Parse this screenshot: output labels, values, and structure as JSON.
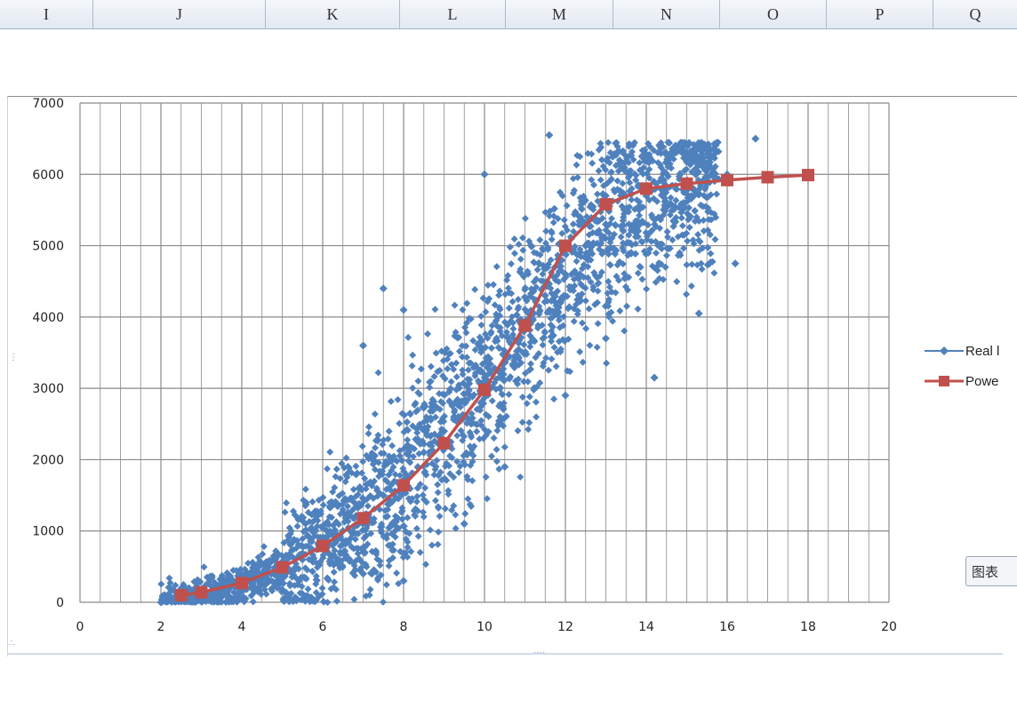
{
  "column_headers": [
    "I",
    "J",
    "K",
    "L",
    "M",
    "N",
    "O",
    "P",
    "Q"
  ],
  "chart_popup_label": "图表",
  "colors": {
    "scatter": "#4f81bd",
    "line": "#c0504d",
    "grid": "#8a8a8a",
    "header_bg": "#e3e9f1"
  },
  "chart_data": {
    "type": "scatter",
    "title": "",
    "xlabel": "",
    "ylabel": "",
    "xlim": [
      0,
      20
    ],
    "ylim": [
      0,
      7000
    ],
    "x_ticks": [
      "0",
      "2",
      "4",
      "6",
      "8",
      "10",
      "12",
      "14",
      "16",
      "18",
      "20"
    ],
    "y_ticks": [
      "0",
      "1000",
      "2000",
      "3000",
      "4000",
      "5000",
      "6000",
      "7000"
    ],
    "grid": true,
    "legend_position": "right",
    "series": [
      {
        "name": "Real l",
        "kind": "scatter",
        "marker": "diamond",
        "approx_points": 6000,
        "points": [
          [
            2.0,
            0
          ],
          [
            2.5,
            20
          ],
          [
            3.0,
            60
          ],
          [
            3.5,
            150
          ],
          [
            4.0,
            250
          ],
          [
            4.5,
            380
          ],
          [
            5.0,
            450
          ],
          [
            5.5,
            600
          ],
          [
            6.0,
            800
          ],
          [
            6.5,
            1000
          ],
          [
            7.0,
            1200
          ],
          [
            7.5,
            1500
          ],
          [
            8.0,
            1700
          ],
          [
            8.5,
            2100
          ],
          [
            9.0,
            2400
          ],
          [
            9.5,
            2800
          ],
          [
            10.0,
            3100
          ],
          [
            10.5,
            3500
          ],
          [
            11.0,
            3900
          ],
          [
            11.5,
            4300
          ],
          [
            12.0,
            4600
          ],
          [
            12.5,
            5000
          ],
          [
            13.0,
            5300
          ],
          [
            13.5,
            5500
          ],
          [
            14.0,
            5700
          ],
          [
            14.5,
            5800
          ],
          [
            15.0,
            5900
          ],
          [
            15.5,
            5950
          ],
          [
            16.0,
            6000
          ],
          [
            16.7,
            6500
          ],
          [
            11.6,
            6550
          ],
          [
            10.0,
            6000
          ],
          [
            7.5,
            4400
          ],
          [
            7.0,
            3600
          ],
          [
            8.0,
            4100
          ],
          [
            16.2,
            4750
          ],
          [
            15.3,
            4050
          ],
          [
            14.2,
            3150
          ],
          [
            10.5,
            1900
          ],
          [
            9.5,
            1100
          ],
          [
            8.0,
            300
          ],
          [
            7.0,
            400
          ],
          [
            12.0,
            2900
          ],
          [
            13.0,
            3700
          ]
        ]
      },
      {
        "name": "Powe",
        "kind": "line",
        "marker": "square",
        "x": [
          2.5,
          3,
          4,
          5,
          6,
          7,
          8,
          9,
          10,
          11,
          12,
          13,
          14,
          15,
          16,
          17,
          18
        ],
        "y": [
          100,
          140,
          270,
          490,
          790,
          1180,
          1640,
          2230,
          2980,
          3880,
          5000,
          5580,
          5800,
          5870,
          5920,
          5960,
          5990
        ]
      }
    ]
  }
}
